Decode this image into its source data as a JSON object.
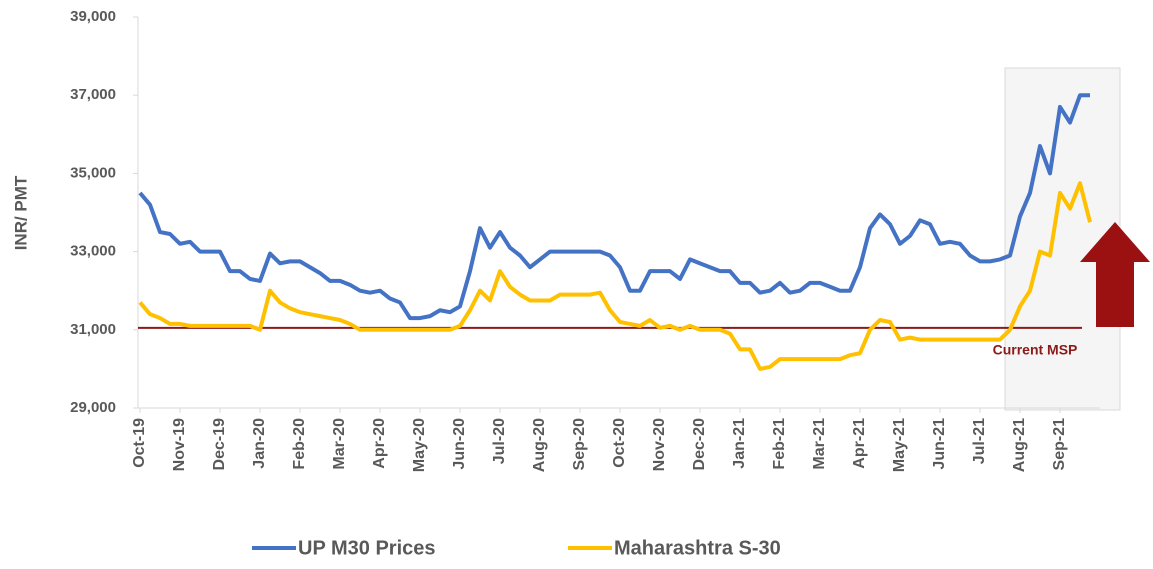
{
  "chart_data": {
    "type": "line",
    "ylabel": "INR/ PMT",
    "categories": [
      "Oct-19",
      null,
      null,
      null,
      "Nov-19",
      null,
      null,
      null,
      "Dec-19",
      null,
      null,
      null,
      "Jan-20",
      null,
      null,
      null,
      "Feb-20",
      null,
      null,
      null,
      "Mar-20",
      null,
      null,
      null,
      "Apr-20",
      null,
      null,
      null,
      "May-20",
      null,
      null,
      null,
      "Jun-20",
      null,
      null,
      null,
      "Jul-20",
      null,
      null,
      null,
      "Aug-20",
      null,
      null,
      null,
      "Sep-20",
      null,
      null,
      null,
      "Oct-20",
      null,
      null,
      null,
      "Nov-20",
      null,
      null,
      null,
      "Dec-20",
      null,
      null,
      null,
      "Jan-21",
      null,
      null,
      null,
      "Feb-21",
      null,
      null,
      null,
      "Mar-21",
      null,
      null,
      null,
      "Apr-21",
      null,
      null,
      null,
      "May-21",
      null,
      null,
      null,
      "Jun-21",
      null,
      null,
      null,
      "Jul-21",
      null,
      null,
      null,
      "Aug-21",
      null,
      null,
      null,
      "Sep-21",
      null,
      null,
      null
    ],
    "series": [
      {
        "name": "UP M30 Prices",
        "color": "#4472c4",
        "values": [
          34500,
          34200,
          33500,
          33450,
          33200,
          33250,
          33000,
          33000,
          33000,
          32500,
          32500,
          32300,
          32250,
          32950,
          32700,
          32750,
          32750,
          32600,
          32450,
          32250,
          32250,
          32150,
          32000,
          31950,
          32000,
          31800,
          31700,
          31300,
          31300,
          31350,
          31500,
          31450,
          31600,
          32500,
          33600,
          33100,
          33500,
          33100,
          32900,
          32600,
          32800,
          33000,
          33000,
          33000,
          33000,
          33000,
          33000,
          32900,
          32600,
          32000,
          32000,
          32500,
          32500,
          32500,
          32300,
          32800,
          32700,
          32600,
          32500,
          32500,
          32200,
          32200,
          31950,
          32000,
          32200,
          31950,
          32000,
          32200,
          32200,
          32100,
          32000,
          32000,
          32600,
          33600,
          33950,
          33700,
          33200,
          33400,
          33800,
          33700,
          33200,
          33250,
          33200,
          32900,
          32750,
          32750,
          32800,
          32900,
          33900,
          34500,
          35700,
          35000,
          36700,
          36300,
          37000,
          37000
        ]
      },
      {
        "name": "Maharashtra S-30",
        "color": "#ffc000",
        "values": [
          31700,
          31400,
          31300,
          31150,
          31150,
          31100,
          31100,
          31100,
          31100,
          31100,
          31100,
          31100,
          31000,
          32000,
          31700,
          31550,
          31450,
          31400,
          31350,
          31300,
          31250,
          31150,
          31000,
          31000,
          31000,
          31000,
          31000,
          31000,
          31000,
          31000,
          31000,
          31000,
          31100,
          31500,
          32000,
          31750,
          32500,
          32100,
          31900,
          31750,
          31750,
          31750,
          31900,
          31900,
          31900,
          31900,
          31950,
          31500,
          31200,
          31150,
          31100,
          31250,
          31050,
          31100,
          31000,
          31100,
          31000,
          31000,
          31000,
          30900,
          30500,
          30500,
          30000,
          30050,
          30250,
          30250,
          30250,
          30250,
          30250,
          30250,
          30250,
          30350,
          30400,
          31000,
          31250,
          31200,
          30750,
          30800,
          30750,
          30750,
          30750,
          30750,
          30750,
          30750,
          30750,
          30750,
          30750,
          31000,
          31600,
          32000,
          33000,
          32900,
          34500,
          34100,
          34750,
          33750
        ]
      }
    ],
    "msp": {
      "label": "Current MSP",
      "value": 31050,
      "color": "#8b1a1a"
    },
    "ylim": [
      29000,
      39000
    ],
    "yticks": [
      {
        "value": 29000,
        "label": "29,000"
      },
      {
        "value": 31000,
        "label": "31,000"
      },
      {
        "value": 33000,
        "label": "33,000"
      },
      {
        "value": 35000,
        "label": "35,000"
      },
      {
        "value": 37000,
        "label": "37,000"
      },
      {
        "value": 39000,
        "label": "39,000"
      }
    ],
    "grid": false
  }
}
